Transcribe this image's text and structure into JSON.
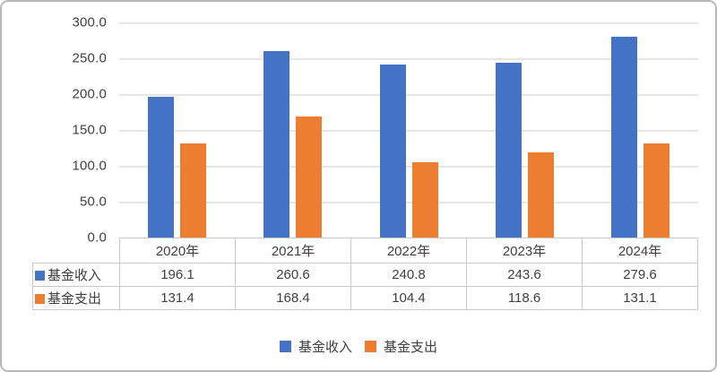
{
  "chart_data": {
    "type": "bar",
    "title": "",
    "categories": [
      "2020年",
      "2021年",
      "2022年",
      "2023年",
      "2024年"
    ],
    "series": [
      {
        "name": "基金收入",
        "slug": "fund-income",
        "color": "#4472C4",
        "values": [
          196.1,
          260.6,
          240.8,
          243.6,
          279.6
        ]
      },
      {
        "name": "基金支出",
        "slug": "fund-expense",
        "color": "#ED7D31",
        "values": [
          131.4,
          168.4,
          104.4,
          118.6,
          131.1
        ]
      }
    ],
    "ylim": [
      0,
      300
    ],
    "ytick_step": 50,
    "ytick_labels": [
      "300.0",
      "250.0",
      "200.0",
      "150.0",
      "100.0",
      "50.0",
      "0.0"
    ],
    "grid": true,
    "legend_position": "bottom",
    "show_data_table": true,
    "colors": {
      "grid": "#E6E6E6",
      "table_border": "#C9C9C9",
      "text": "#404040",
      "frame_border": "#B9B9B9"
    }
  }
}
